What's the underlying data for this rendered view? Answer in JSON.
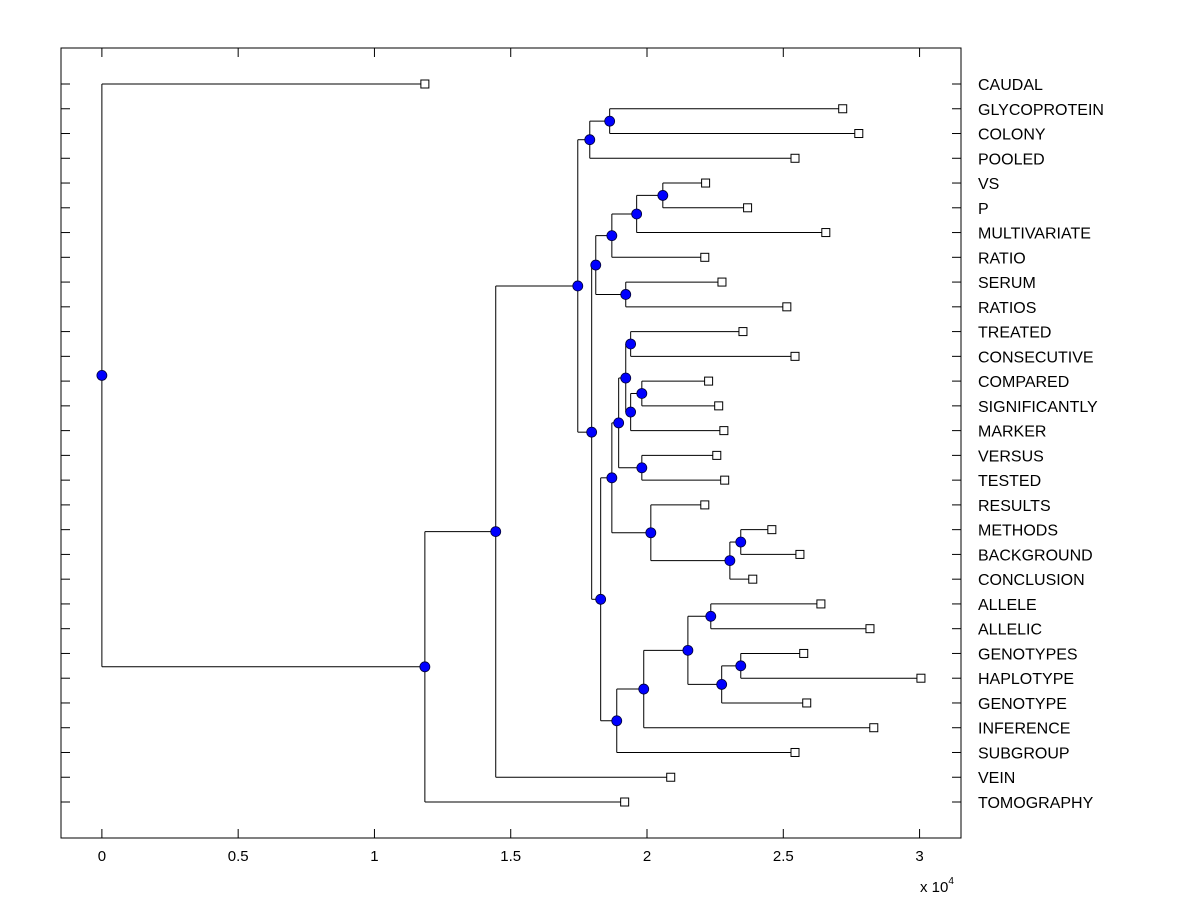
{
  "chart_data": {
    "type": "dendrogram",
    "title": "",
    "xlabel": "",
    "ylabel": "",
    "x_exponent_label": "x 10",
    "x_exponent": "4",
    "xlim": [
      -0.15,
      3.152
    ],
    "xticks": [
      0,
      0.5,
      1,
      1.5,
      2,
      2.5,
      3
    ],
    "xtick_labels": [
      "0",
      "0.5",
      "1",
      "1.5",
      "2",
      "2.5",
      "3"
    ],
    "grid": false,
    "orientation": "left-to-right",
    "leaf_labels_position": "right",
    "colors": {
      "internal_node": "#0000ff",
      "leaf_marker": "#ffffff",
      "line": "#000000"
    },
    "leaves": [
      {
        "id": "CAUDAL",
        "label": "CAUDAL",
        "x": 1.185
      },
      {
        "id": "GLYCOPROTEIN",
        "label": "GLYCOPROTEIN",
        "x": 2.718
      },
      {
        "id": "COLONY",
        "label": "COLONY",
        "x": 2.777
      },
      {
        "id": "POOLED",
        "label": "POOLED",
        "x": 2.543
      },
      {
        "id": "VS",
        "label": "VS",
        "x": 2.215
      },
      {
        "id": "P",
        "label": "P",
        "x": 2.369
      },
      {
        "id": "MULTIVARIATE",
        "label": "MULTIVARIATE",
        "x": 2.656
      },
      {
        "id": "RATIO",
        "label": "RATIO",
        "x": 2.212
      },
      {
        "id": "SERUM",
        "label": "SERUM",
        "x": 2.275
      },
      {
        "id": "RATIOS",
        "label": "RATIOS",
        "x": 2.513
      },
      {
        "id": "TREATED",
        "label": "TREATED",
        "x": 2.352
      },
      {
        "id": "CONSECUTIVE",
        "label": "CONSECUTIVE",
        "x": 2.543
      },
      {
        "id": "COMPARED",
        "label": "COMPARED",
        "x": 2.226
      },
      {
        "id": "SIGNIFICANTLY",
        "label": "SIGNIFICANTLY",
        "x": 2.263
      },
      {
        "id": "MARKER",
        "label": "MARKER",
        "x": 2.282
      },
      {
        "id": "VERSUS",
        "label": "VERSUS",
        "x": 2.256
      },
      {
        "id": "TESTED",
        "label": "TESTED",
        "x": 2.285
      },
      {
        "id": "RESULTS",
        "label": "RESULTS",
        "x": 2.212
      },
      {
        "id": "METHODS",
        "label": "METHODS",
        "x": 2.458
      },
      {
        "id": "BACKGROUND",
        "label": "BACKGROUND",
        "x": 2.561
      },
      {
        "id": "CONCLUSION",
        "label": "CONCLUSION",
        "x": 2.388
      },
      {
        "id": "ALLELE",
        "label": "ALLELE",
        "x": 2.638
      },
      {
        "id": "ALLELIC",
        "label": "ALLELIC",
        "x": 2.818
      },
      {
        "id": "GENOTYPES",
        "label": "GENOTYPES",
        "x": 2.575
      },
      {
        "id": "HAPLOTYPE",
        "label": "HAPLOTYPE",
        "x": 3.005
      },
      {
        "id": "GENOTYPE",
        "label": "GENOTYPE",
        "x": 2.586
      },
      {
        "id": "INFERENCE",
        "label": "INFERENCE",
        "x": 2.832
      },
      {
        "id": "SUBGROUP",
        "label": "SUBGROUP",
        "x": 2.543
      },
      {
        "id": "VEIN",
        "label": "VEIN",
        "x": 2.087
      },
      {
        "id": "TOMOGRAPHY",
        "label": "TOMOGRAPHY",
        "x": 1.918
      }
    ],
    "nodes": [
      {
        "id": "root",
        "x": 0.0,
        "children": [
          "CAUDAL",
          "A"
        ]
      },
      {
        "id": "A",
        "x": 1.185,
        "children": [
          "B",
          "TOMOGRAPHY"
        ]
      },
      {
        "id": "B",
        "x": 1.445,
        "children": [
          "C",
          "VEIN"
        ]
      },
      {
        "id": "C",
        "x": 1.746,
        "children": [
          "D",
          "E"
        ]
      },
      {
        "id": "D",
        "x": 1.79,
        "children": [
          "F",
          "POOLED"
        ]
      },
      {
        "id": "F",
        "x": 1.863,
        "children": [
          "GLYCOPROTEIN",
          "COLONY"
        ]
      },
      {
        "id": "E",
        "x": 1.797,
        "children": [
          "G",
          "H"
        ]
      },
      {
        "id": "G",
        "x": 1.812,
        "children": [
          "I",
          "J"
        ]
      },
      {
        "id": "I",
        "x": 1.871,
        "children": [
          "K",
          "RATIO"
        ]
      },
      {
        "id": "K",
        "x": 1.962,
        "children": [
          "L",
          "MULTIVARIATE"
        ]
      },
      {
        "id": "L",
        "x": 2.058,
        "children": [
          "VS",
          "P"
        ]
      },
      {
        "id": "J",
        "x": 1.922,
        "children": [
          "SERUM",
          "RATIOS"
        ]
      },
      {
        "id": "H",
        "x": 1.83,
        "children": [
          "M",
          "N"
        ]
      },
      {
        "id": "M",
        "x": 1.871,
        "children": [
          "O",
          "PP"
        ]
      },
      {
        "id": "O",
        "x": 1.896,
        "children": [
          "Q",
          "R"
        ]
      },
      {
        "id": "Q",
        "x": 1.922,
        "children": [
          "S",
          "T"
        ]
      },
      {
        "id": "S",
        "x": 1.94,
        "children": [
          "TREATED",
          "CONSECUTIVE"
        ]
      },
      {
        "id": "T",
        "x": 1.94,
        "children": [
          "U",
          "MARKER"
        ]
      },
      {
        "id": "U",
        "x": 1.981,
        "children": [
          "COMPARED",
          "SIGNIFICANTLY"
        ]
      },
      {
        "id": "R",
        "x": 1.981,
        "children": [
          "VERSUS",
          "TESTED"
        ]
      },
      {
        "id": "PP",
        "x": 2.014,
        "children": [
          "RESULTS",
          "V"
        ]
      },
      {
        "id": "V",
        "x": 2.304,
        "children": [
          "W",
          "CONCLUSION"
        ]
      },
      {
        "id": "W",
        "x": 2.344,
        "children": [
          "METHODS",
          "BACKGROUND"
        ]
      },
      {
        "id": "N",
        "x": 1.889,
        "children": [
          "X",
          "SUBGROUP"
        ]
      },
      {
        "id": "X",
        "x": 1.988,
        "children": [
          "Y",
          "INFERENCE"
        ]
      },
      {
        "id": "Y",
        "x": 2.15,
        "children": [
          "Z",
          "AA"
        ]
      },
      {
        "id": "Z",
        "x": 2.234,
        "children": [
          "ALLELE",
          "ALLELIC"
        ]
      },
      {
        "id": "AA",
        "x": 2.274,
        "children": [
          "AB",
          "GENOTYPE"
        ]
      },
      {
        "id": "AB",
        "x": 2.344,
        "children": [
          "GENOTYPES",
          "HAPLOTYPE"
        ]
      }
    ]
  }
}
